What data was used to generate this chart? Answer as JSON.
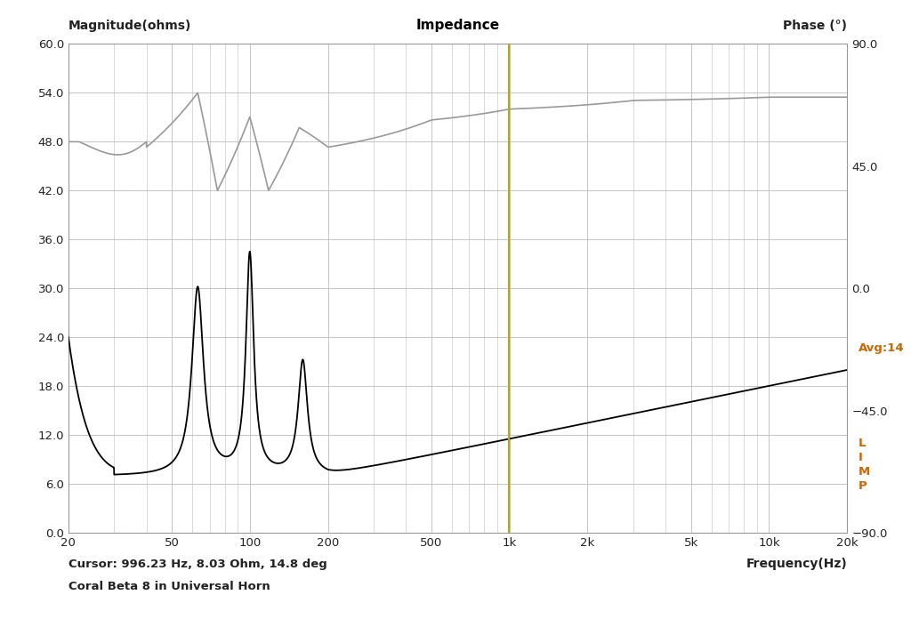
{
  "title": "Impedance",
  "ylabel_left_text": "Magnitude(ohms)",
  "ylabel_right_text": "Phase (°)",
  "xlabel": "Frequency(Hz)",
  "annotation_cursor": "Cursor: 996.23 Hz, 8.03 Ohm, 14.8 deg",
  "annotation_subtitle": "Coral Beta 8 in Universal Horn",
  "annotation_avg": "Avg:14",
  "cursor_freq": 996.23,
  "ylim_left": [
    0.0,
    60.0
  ],
  "ylim_right": [
    -90.0,
    90.0
  ],
  "xlim": [
    20,
    20000
  ],
  "yticks_left": [
    0.0,
    6.0,
    12.0,
    18.0,
    24.0,
    30.0,
    36.0,
    42.0,
    48.0,
    54.0,
    60.0
  ],
  "yticks_right": [
    -90.0,
    -45.0,
    0.0,
    45.0,
    90.0
  ],
  "xtick_labels": [
    "20",
    "50",
    "100",
    "200",
    "500",
    "1k",
    "2k",
    "5k",
    "10k",
    "20k"
  ],
  "xtick_values": [
    20,
    50,
    100,
    200,
    500,
    1000,
    2000,
    5000,
    10000,
    20000
  ],
  "bg_color": "#ffffff",
  "grid_major_color": "#bbbbbb",
  "grid_minor_color": "#dddddd",
  "impedance_color": "#000000",
  "phase_color": "#999999",
  "cursor_color": "#b8a800",
  "title_color": "#000000",
  "right_annot_color": "#cc6600",
  "label_color": "#222222"
}
